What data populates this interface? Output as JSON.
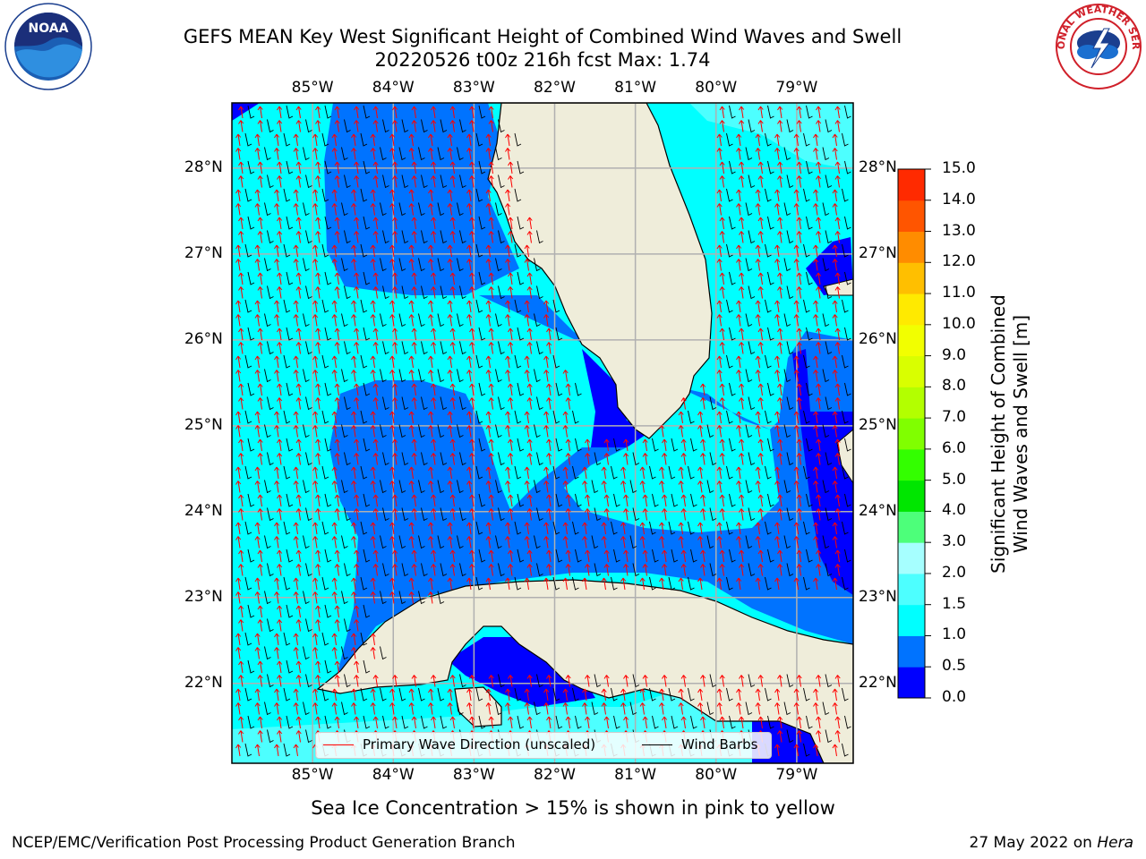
{
  "header": {
    "title_line1": "GEFS MEAN Key West Significant Height of Combined Wind Waves and Swell",
    "title_line2": "20220526 t00z 216h fcst   Max: 1.74"
  },
  "logos": {
    "left": {
      "icon": "noaa-logo",
      "text": "NOAA"
    },
    "right": {
      "icon": "nws-logo",
      "text": "NATIONAL WEATHER SERVICE"
    }
  },
  "map": {
    "lon_labels": [
      "85°W",
      "84°W",
      "83°W",
      "82°W",
      "81°W",
      "80°W",
      "79°W"
    ],
    "lon_values": [
      -85,
      -84,
      -83,
      -82,
      -81,
      -80,
      -79
    ],
    "lat_labels": [
      "28°N",
      "27°N",
      "26°N",
      "25°N",
      "24°N",
      "23°N",
      "22°N"
    ],
    "lat_values": [
      28,
      27,
      26,
      25,
      24,
      23,
      22
    ],
    "lon_range": [
      -86.0,
      -78.3
    ],
    "lat_range": [
      21.07,
      28.76
    ],
    "colors": {
      "land": "#efedda",
      "wave_0_0p5": "#0000ff",
      "wave_0p5_1": "#0073ff",
      "wave_1_1p5": "#00ffff",
      "wave_1p5_2": "#4dffff",
      "grid": "#b0b0b0",
      "wave_arrow": "#ff0000",
      "wind_barb": "#000000"
    }
  },
  "legend": {
    "primary_wave_label": "Primary Wave Direction (unscaled)",
    "wind_barbs_label": "Wind Barbs"
  },
  "colorbar": {
    "title_line1": "Significant Height of Combined",
    "title_line2": "Wind Waves and Swell [m]",
    "ticks": [
      "0.0",
      "0.5",
      "1.0",
      "1.5",
      "2.0",
      "3.0",
      "4.0",
      "5.0",
      "6.0",
      "7.0",
      "8.0",
      "9.0",
      "10.0",
      "11.0",
      "12.0",
      "13.0",
      "14.0",
      "15.0"
    ],
    "colors": [
      "#0000ff",
      "#0073ff",
      "#00ffff",
      "#4dffff",
      "#a6ffff",
      "#4dff7a",
      "#00e600",
      "#33ff00",
      "#80ff00",
      "#b3ff00",
      "#d9ff00",
      "#f2ff00",
      "#ffea00",
      "#ffbf00",
      "#ff8c00",
      "#ff5500",
      "#ff2a00"
    ]
  },
  "footer": {
    "ice_note": "Sea Ice Concentration > 15% is shown in pink to yellow",
    "left": "NCEP/EMC/Verification Post Processing Product Generation Branch",
    "date": "27 May 2022 on",
    "host": "Hera"
  }
}
